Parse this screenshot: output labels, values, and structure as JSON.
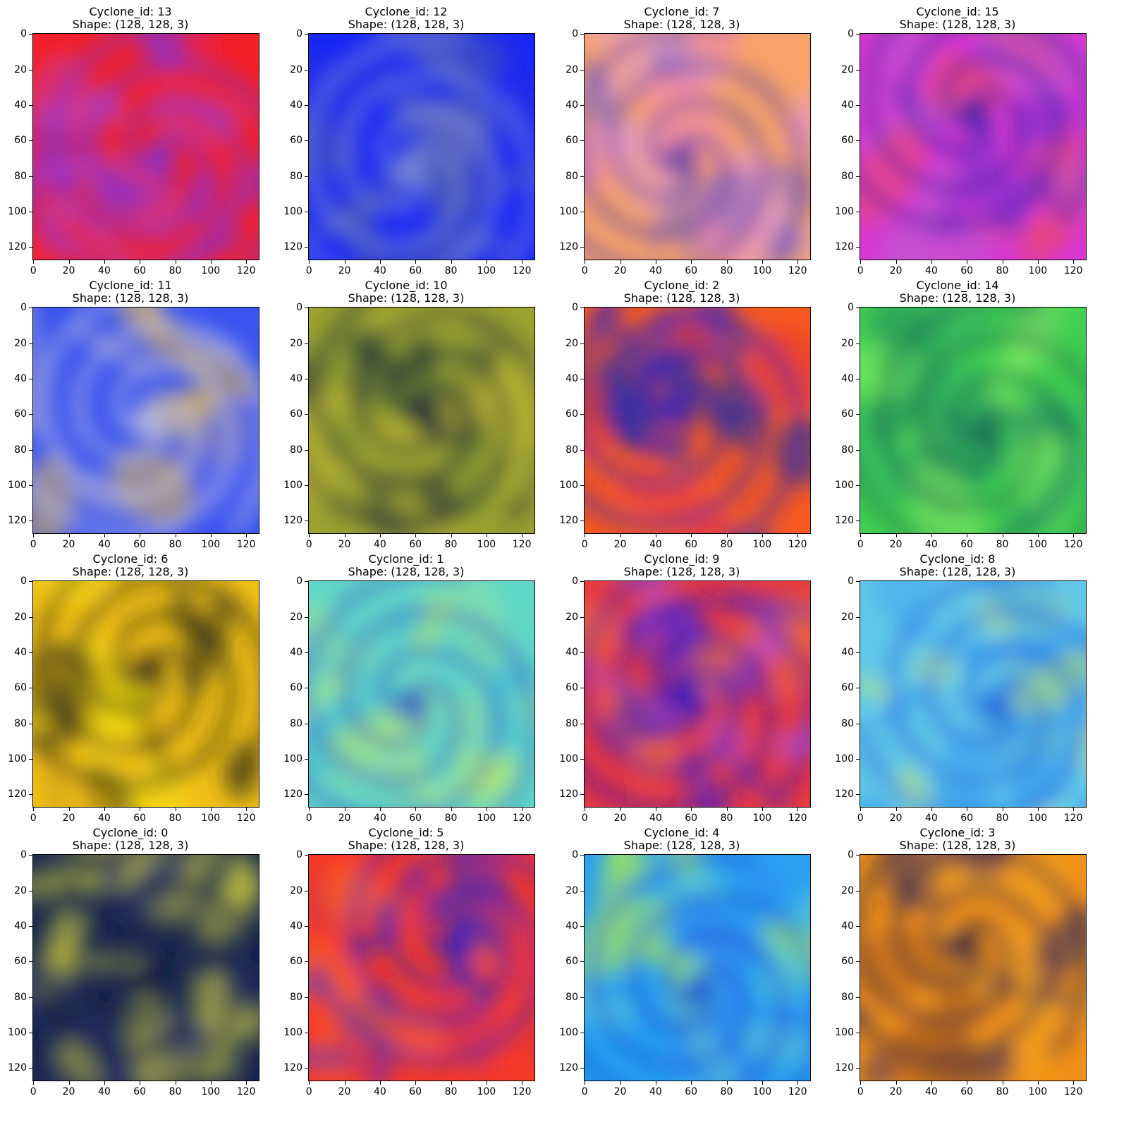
{
  "title_prefix": "Cyclone_id: ",
  "shape_label": "Shape: (128, 128, 3)",
  "axis": {
    "xlim": [
      0,
      128
    ],
    "ylim": [
      0,
      128
    ],
    "ticks": [
      0,
      20,
      40,
      60,
      80,
      100,
      120
    ]
  },
  "panels": [
    {
      "id": "13",
      "colors": [
        "#f2212a",
        "#e2243f",
        "#8a2fd0",
        "#c33fb0"
      ],
      "eye": [
        0.55,
        0.55
      ],
      "spiral": "#7a30e0"
    },
    {
      "id": "12",
      "colors": [
        "#1828f4",
        "#2a30e0",
        "#6470c0",
        "#4a5ab0"
      ],
      "eye": [
        0.45,
        0.6
      ],
      "spiral": "#8090d8"
    },
    {
      "id": "7",
      "colors": [
        "#f7a36a",
        "#f58ab0",
        "#e9a0c8",
        "#7660c8"
      ],
      "eye": [
        0.42,
        0.55
      ],
      "spiral": "#5838a8"
    },
    {
      "id": "15",
      "colors": [
        "#d838d0",
        "#7a2ed0",
        "#f04a60",
        "#c05ad0"
      ],
      "eye": [
        0.5,
        0.35
      ],
      "spiral": "#3a20a8"
    },
    {
      "id": "11",
      "colors": [
        "#3a54f0",
        "#e0b840",
        "#a0a0d0",
        "#4a5ef0"
      ],
      "eye": [
        0.5,
        0.5
      ],
      "spiral": "#c0c0e0"
    },
    {
      "id": "10",
      "colors": [
        "#9aa230",
        "#c8c030",
        "#243038",
        "#708a30"
      ],
      "eye": [
        0.5,
        0.45
      ],
      "spiral": "#1a2838"
    },
    {
      "id": "2",
      "colors": [
        "#f85a20",
        "#e83a30",
        "#5030b0",
        "#2430a0"
      ],
      "eye": [
        0.4,
        0.45
      ],
      "spiral": "#2a20c0"
    },
    {
      "id": "14",
      "colors": [
        "#40d050",
        "#8af060",
        "#30b060",
        "#208860"
      ],
      "eye": [
        0.55,
        0.55
      ],
      "spiral": "#1a6850"
    },
    {
      "id": "6",
      "colors": [
        "#f0c018",
        "#f8e010",
        "#30301a",
        "#d0a010"
      ],
      "eye": [
        0.5,
        0.4
      ],
      "spiral": "#1a1a18"
    },
    {
      "id": "1",
      "colors": [
        "#60d8c8",
        "#c0f060",
        "#40b8d8",
        "#90e0a0"
      ],
      "eye": [
        0.45,
        0.55
      ],
      "spiral": "#3858c0"
    },
    {
      "id": "9",
      "colors": [
        "#e83a40",
        "#5a28d0",
        "#c050d0",
        "#f07020"
      ],
      "eye": [
        0.45,
        0.5
      ],
      "spiral": "#3018b8"
    },
    {
      "id": "8",
      "colors": [
        "#60c8e8",
        "#2890f0",
        "#d0f060",
        "#40a8f0"
      ],
      "eye": [
        0.6,
        0.55
      ],
      "spiral": "#2060e0"
    },
    {
      "id": "0",
      "colors": [
        "#1a2a50",
        "#c0c040",
        "#283070",
        "#e0e040"
      ],
      "eye": [
        0.5,
        0.55
      ],
      "spiral": "#101840"
    },
    {
      "id": "5",
      "colors": [
        "#f63a28",
        "#f86020",
        "#3028d0",
        "#d03050"
      ],
      "eye": [
        0.65,
        0.4
      ],
      "spiral": "#2820c8"
    },
    {
      "id": "4",
      "colors": [
        "#2aa0f0",
        "#60d0d0",
        "#b0f040",
        "#3088f0"
      ],
      "eye": [
        0.5,
        0.6
      ],
      "spiral": "#1850d0"
    },
    {
      "id": "3",
      "colors": [
        "#f09018",
        "#f8a818",
        "#30286a",
        "#b06018"
      ],
      "eye": [
        0.45,
        0.4
      ],
      "spiral": "#201a48"
    }
  ]
}
